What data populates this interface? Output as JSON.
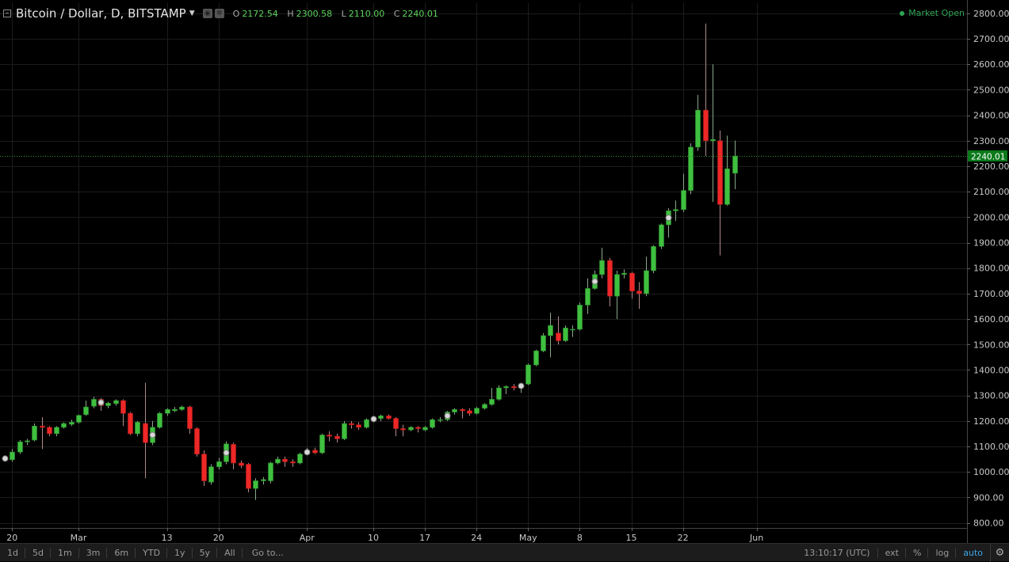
{
  "header": {
    "symbol": "Bitcoin / Dollar, D, BITSTAMP",
    "ohlc": [
      {
        "key": "O",
        "value": "2172.54"
      },
      {
        "key": "H",
        "value": "2300.58"
      },
      {
        "key": "L",
        "value": "2110.00"
      },
      {
        "key": "C",
        "value": "2240.01"
      }
    ],
    "market_status": "Market Open"
  },
  "toolbar": {
    "ranges": [
      "1d",
      "5d",
      "1m",
      "3m",
      "6m",
      "YTD",
      "1y",
      "5y",
      "All"
    ],
    "goto_label": "Go to...",
    "clock": "13:10:17 (UTC)",
    "options": [
      "ext",
      "%",
      "log",
      "auto"
    ],
    "active_option": "auto"
  },
  "colors": {
    "background": "#000000",
    "up": "#3fc03f",
    "down": "#ee2727",
    "grid": "#1c1c1c",
    "price_line": "#2a9a2a"
  },
  "chart_data": {
    "type": "candlestick",
    "title": "Bitcoin / Dollar, D, BITSTAMP",
    "ylim": [
      780,
      2840
    ],
    "y_ticks": [
      "800.00",
      "900.00",
      "1000.00",
      "1100.00",
      "1200.00",
      "1300.00",
      "1400.00",
      "1500.00",
      "1600.00",
      "1700.00",
      "1800.00",
      "1900.00",
      "2000.00",
      "2100.00",
      "2200.00",
      "2300.00",
      "2400.00",
      "2500.00",
      "2600.00",
      "2700.00",
      "2800.00"
    ],
    "x_tick_labels": [
      {
        "date": "2017-02-20",
        "label": "20"
      },
      {
        "date": "2017-03-01",
        "label": "Mar"
      },
      {
        "date": "2017-03-13",
        "label": "13"
      },
      {
        "date": "2017-03-20",
        "label": "20"
      },
      {
        "date": "2017-04-01",
        "label": "Apr"
      },
      {
        "date": "2017-04-10",
        "label": "10"
      },
      {
        "date": "2017-04-17",
        "label": "17"
      },
      {
        "date": "2017-04-24",
        "label": "24"
      },
      {
        "date": "2017-05-01",
        "label": "May"
      },
      {
        "date": "2017-05-08",
        "label": "8"
      },
      {
        "date": "2017-05-15",
        "label": "15"
      },
      {
        "date": "2017-05-22",
        "label": "22"
      },
      {
        "date": "2017-06-01",
        "label": "Jun"
      }
    ],
    "last_price": 2240.01,
    "last_price_label": "2240.01",
    "dividend_marks": [
      "2017-02-19",
      "2017-03-04",
      "2017-03-11",
      "2017-03-21",
      "2017-04-01",
      "2017-04-10",
      "2017-04-20",
      "2017-04-30",
      "2017-05-10",
      "2017-05-20"
    ],
    "candles": [
      {
        "date": "2017-02-19",
        "o": 1050,
        "h": 1060,
        "l": 1040,
        "c": 1055
      },
      {
        "date": "2017-02-20",
        "o": 1048,
        "h": 1090,
        "l": 1040,
        "c": 1078
      },
      {
        "date": "2017-02-21",
        "o": 1078,
        "h": 1125,
        "l": 1070,
        "c": 1118
      },
      {
        "date": "2017-02-22",
        "o": 1118,
        "h": 1130,
        "l": 1105,
        "c": 1122
      },
      {
        "date": "2017-02-23",
        "o": 1125,
        "h": 1190,
        "l": 1120,
        "c": 1180
      },
      {
        "date": "2017-02-24",
        "o": 1180,
        "h": 1215,
        "l": 1090,
        "c": 1175
      },
      {
        "date": "2017-02-25",
        "o": 1175,
        "h": 1180,
        "l": 1140,
        "c": 1150
      },
      {
        "date": "2017-02-26",
        "o": 1150,
        "h": 1180,
        "l": 1140,
        "c": 1175
      },
      {
        "date": "2017-02-27",
        "o": 1175,
        "h": 1195,
        "l": 1170,
        "c": 1190
      },
      {
        "date": "2017-02-28",
        "o": 1187,
        "h": 1205,
        "l": 1180,
        "c": 1195
      },
      {
        "date": "2017-03-01",
        "o": 1195,
        "h": 1225,
        "l": 1190,
        "c": 1222
      },
      {
        "date": "2017-03-02",
        "o": 1225,
        "h": 1280,
        "l": 1220,
        "c": 1255
      },
      {
        "date": "2017-03-03",
        "o": 1258,
        "h": 1295,
        "l": 1250,
        "c": 1285
      },
      {
        "date": "2017-03-04",
        "o": 1285,
        "h": 1290,
        "l": 1240,
        "c": 1260
      },
      {
        "date": "2017-03-05",
        "o": 1260,
        "h": 1275,
        "l": 1250,
        "c": 1270
      },
      {
        "date": "2017-03-06",
        "o": 1268,
        "h": 1285,
        "l": 1260,
        "c": 1280
      },
      {
        "date": "2017-03-07",
        "o": 1280,
        "h": 1285,
        "l": 1180,
        "c": 1230
      },
      {
        "date": "2017-03-08",
        "o": 1230,
        "h": 1235,
        "l": 1145,
        "c": 1150
      },
      {
        "date": "2017-03-09",
        "o": 1150,
        "h": 1200,
        "l": 1140,
        "c": 1195
      },
      {
        "date": "2017-03-10",
        "o": 1190,
        "h": 1350,
        "l": 975,
        "c": 1115
      },
      {
        "date": "2017-03-11",
        "o": 1115,
        "h": 1200,
        "l": 1105,
        "c": 1175
      },
      {
        "date": "2017-03-12",
        "o": 1175,
        "h": 1235,
        "l": 1170,
        "c": 1230
      },
      {
        "date": "2017-03-13",
        "o": 1230,
        "h": 1250,
        "l": 1220,
        "c": 1245
      },
      {
        "date": "2017-03-14",
        "o": 1240,
        "h": 1255,
        "l": 1235,
        "c": 1245
      },
      {
        "date": "2017-03-15",
        "o": 1245,
        "h": 1260,
        "l": 1240,
        "c": 1255
      },
      {
        "date": "2017-03-16",
        "o": 1255,
        "h": 1260,
        "l": 1150,
        "c": 1170
      },
      {
        "date": "2017-03-17",
        "o": 1170,
        "h": 1175,
        "l": 1060,
        "c": 1070
      },
      {
        "date": "2017-03-18",
        "o": 1070,
        "h": 1085,
        "l": 945,
        "c": 965
      },
      {
        "date": "2017-03-19",
        "o": 960,
        "h": 1030,
        "l": 950,
        "c": 1020
      },
      {
        "date": "2017-03-20",
        "o": 1020,
        "h": 1055,
        "l": 1010,
        "c": 1040
      },
      {
        "date": "2017-03-21",
        "o": 1040,
        "h": 1120,
        "l": 1030,
        "c": 1110
      },
      {
        "date": "2017-03-22",
        "o": 1108,
        "h": 1115,
        "l": 1010,
        "c": 1035
      },
      {
        "date": "2017-03-23",
        "o": 1035,
        "h": 1045,
        "l": 1015,
        "c": 1025
      },
      {
        "date": "2017-03-24",
        "o": 1030,
        "h": 1035,
        "l": 920,
        "c": 935
      },
      {
        "date": "2017-03-25",
        "o": 935,
        "h": 975,
        "l": 890,
        "c": 965
      },
      {
        "date": "2017-03-26",
        "o": 965,
        "h": 980,
        "l": 950,
        "c": 970
      },
      {
        "date": "2017-03-27",
        "o": 965,
        "h": 1040,
        "l": 955,
        "c": 1035
      },
      {
        "date": "2017-03-28",
        "o": 1035,
        "h": 1060,
        "l": 1030,
        "c": 1050
      },
      {
        "date": "2017-03-29",
        "o": 1050,
        "h": 1060,
        "l": 1020,
        "c": 1040
      },
      {
        "date": "2017-03-30",
        "o": 1040,
        "h": 1050,
        "l": 1020,
        "c": 1035
      },
      {
        "date": "2017-03-31",
        "o": 1035,
        "h": 1075,
        "l": 1030,
        "c": 1070
      },
      {
        "date": "2017-04-01",
        "o": 1070,
        "h": 1095,
        "l": 1065,
        "c": 1085
      },
      {
        "date": "2017-04-02",
        "o": 1085,
        "h": 1095,
        "l": 1070,
        "c": 1075
      },
      {
        "date": "2017-04-03",
        "o": 1075,
        "h": 1150,
        "l": 1070,
        "c": 1145
      },
      {
        "date": "2017-04-04",
        "o": 1145,
        "h": 1160,
        "l": 1120,
        "c": 1140
      },
      {
        "date": "2017-04-05",
        "o": 1140,
        "h": 1150,
        "l": 1115,
        "c": 1130
      },
      {
        "date": "2017-04-06",
        "o": 1130,
        "h": 1200,
        "l": 1125,
        "c": 1190
      },
      {
        "date": "2017-04-07",
        "o": 1190,
        "h": 1200,
        "l": 1170,
        "c": 1185
      },
      {
        "date": "2017-04-08",
        "o": 1185,
        "h": 1195,
        "l": 1165,
        "c": 1175
      },
      {
        "date": "2017-04-09",
        "o": 1175,
        "h": 1210,
        "l": 1170,
        "c": 1205
      },
      {
        "date": "2017-04-10",
        "o": 1205,
        "h": 1215,
        "l": 1195,
        "c": 1210
      },
      {
        "date": "2017-04-11",
        "o": 1210,
        "h": 1225,
        "l": 1200,
        "c": 1220
      },
      {
        "date": "2017-04-12",
        "o": 1220,
        "h": 1225,
        "l": 1205,
        "c": 1210
      },
      {
        "date": "2017-04-13",
        "o": 1210,
        "h": 1215,
        "l": 1140,
        "c": 1170
      },
      {
        "date": "2017-04-14",
        "o": 1170,
        "h": 1185,
        "l": 1140,
        "c": 1165
      },
      {
        "date": "2017-04-15",
        "o": 1165,
        "h": 1180,
        "l": 1160,
        "c": 1175
      },
      {
        "date": "2017-04-16",
        "o": 1175,
        "h": 1180,
        "l": 1155,
        "c": 1170
      },
      {
        "date": "2017-04-17",
        "o": 1165,
        "h": 1180,
        "l": 1160,
        "c": 1175
      },
      {
        "date": "2017-04-18",
        "o": 1175,
        "h": 1210,
        "l": 1170,
        "c": 1205
      },
      {
        "date": "2017-04-19",
        "o": 1205,
        "h": 1215,
        "l": 1195,
        "c": 1205
      },
      {
        "date": "2017-04-20",
        "o": 1205,
        "h": 1240,
        "l": 1200,
        "c": 1235
      },
      {
        "date": "2017-04-21",
        "o": 1235,
        "h": 1250,
        "l": 1225,
        "c": 1245
      },
      {
        "date": "2017-04-22",
        "o": 1245,
        "h": 1250,
        "l": 1210,
        "c": 1240
      },
      {
        "date": "2017-04-23",
        "o": 1240,
        "h": 1250,
        "l": 1220,
        "c": 1230
      },
      {
        "date": "2017-04-24",
        "o": 1230,
        "h": 1255,
        "l": 1225,
        "c": 1250
      },
      {
        "date": "2017-04-25",
        "o": 1250,
        "h": 1270,
        "l": 1245,
        "c": 1265
      },
      {
        "date": "2017-04-26",
        "o": 1265,
        "h": 1330,
        "l": 1260,
        "c": 1285
      },
      {
        "date": "2017-04-27",
        "o": 1285,
        "h": 1340,
        "l": 1280,
        "c": 1330
      },
      {
        "date": "2017-04-28",
        "o": 1330,
        "h": 1340,
        "l": 1305,
        "c": 1335
      },
      {
        "date": "2017-04-29",
        "o": 1335,
        "h": 1345,
        "l": 1320,
        "c": 1330
      },
      {
        "date": "2017-04-30",
        "o": 1330,
        "h": 1350,
        "l": 1310,
        "c": 1345
      },
      {
        "date": "2017-05-01",
        "o": 1345,
        "h": 1425,
        "l": 1340,
        "c": 1420
      },
      {
        "date": "2017-05-02",
        "o": 1420,
        "h": 1480,
        "l": 1415,
        "c": 1475
      },
      {
        "date": "2017-05-03",
        "o": 1475,
        "h": 1545,
        "l": 1470,
        "c": 1535
      },
      {
        "date": "2017-05-04",
        "o": 1535,
        "h": 1625,
        "l": 1450,
        "c": 1575
      },
      {
        "date": "2017-05-05",
        "o": 1545,
        "h": 1610,
        "l": 1500,
        "c": 1515
      },
      {
        "date": "2017-05-06",
        "o": 1515,
        "h": 1575,
        "l": 1510,
        "c": 1565
      },
      {
        "date": "2017-05-07",
        "o": 1560,
        "h": 1575,
        "l": 1530,
        "c": 1560
      },
      {
        "date": "2017-05-08",
        "o": 1560,
        "h": 1665,
        "l": 1555,
        "c": 1655
      },
      {
        "date": "2017-05-09",
        "o": 1655,
        "h": 1760,
        "l": 1620,
        "c": 1720
      },
      {
        "date": "2017-05-10",
        "o": 1720,
        "h": 1790,
        "l": 1715,
        "c": 1775
      },
      {
        "date": "2017-05-11",
        "o": 1775,
        "h": 1880,
        "l": 1760,
        "c": 1830
      },
      {
        "date": "2017-05-12",
        "o": 1830,
        "h": 1840,
        "l": 1650,
        "c": 1690
      },
      {
        "date": "2017-05-13",
        "o": 1690,
        "h": 1790,
        "l": 1600,
        "c": 1775
      },
      {
        "date": "2017-05-14",
        "o": 1775,
        "h": 1795,
        "l": 1760,
        "c": 1780
      },
      {
        "date": "2017-05-15",
        "o": 1780,
        "h": 1785,
        "l": 1680,
        "c": 1710
      },
      {
        "date": "2017-05-16",
        "o": 1710,
        "h": 1745,
        "l": 1640,
        "c": 1700
      },
      {
        "date": "2017-05-17",
        "o": 1700,
        "h": 1845,
        "l": 1690,
        "c": 1790
      },
      {
        "date": "2017-05-18",
        "o": 1790,
        "h": 1890,
        "l": 1780,
        "c": 1885
      },
      {
        "date": "2017-05-19",
        "o": 1885,
        "h": 1975,
        "l": 1875,
        "c": 1970
      },
      {
        "date": "2017-05-20",
        "o": 1970,
        "h": 2035,
        "l": 1920,
        "c": 2025
      },
      {
        "date": "2017-05-21",
        "o": 2025,
        "h": 2065,
        "l": 1985,
        "c": 2030
      },
      {
        "date": "2017-05-22",
        "o": 2030,
        "h": 2170,
        "l": 2020,
        "c": 2105
      },
      {
        "date": "2017-05-23",
        "o": 2105,
        "h": 2290,
        "l": 2090,
        "c": 2275
      },
      {
        "date": "2017-05-24",
        "o": 2275,
        "h": 2480,
        "l": 2260,
        "c": 2420
      },
      {
        "date": "2017-05-25",
        "o": 2420,
        "h": 2760,
        "l": 2240,
        "c": 2300
      },
      {
        "date": "2017-05-26",
        "o": 2300,
        "h": 2600,
        "l": 2060,
        "c": 2305
      },
      {
        "date": "2017-05-27",
        "o": 2300,
        "h": 2340,
        "l": 1850,
        "c": 2050
      },
      {
        "date": "2017-05-28",
        "o": 2050,
        "h": 2320,
        "l": 2045,
        "c": 2190
      },
      {
        "date": "2017-05-29",
        "o": 2172.54,
        "h": 2300.58,
        "l": 2110.0,
        "c": 2240.01
      }
    ]
  }
}
